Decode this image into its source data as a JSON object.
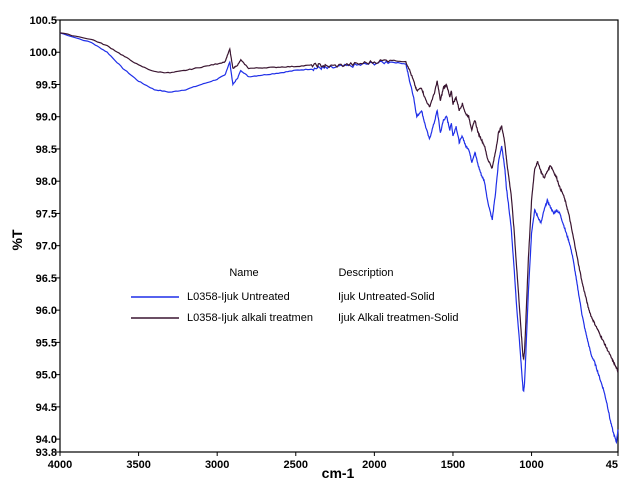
{
  "chart_data": {
    "type": "line",
    "xlabel": "cm-1",
    "ylabel": "%T",
    "xlim": [
      4000,
      450
    ],
    "ylim": [
      93.8,
      100.5
    ],
    "x_ticks": [
      "4000",
      "3500",
      "3000",
      "2500",
      "2000",
      "1500",
      "1000",
      "45"
    ],
    "y_ticks": [
      "100.5",
      "100.0",
      "99.5",
      "99.0",
      "98.5",
      "98.0",
      "97.5",
      "97.0",
      "96.5",
      "96.0",
      "95.5",
      "95.0",
      "94.5",
      "94.0",
      "93.8"
    ],
    "grid": false,
    "legend": {
      "placement": "center-left",
      "header_name": "Name",
      "header_description": "Description",
      "entries": [
        {
          "name": "L0358-Ijuk Untreated",
          "description": "Ijuk Untreated-Solid",
          "color": "#1f2fe8"
        },
        {
          "name": "L0358-Ijuk alkali treatmen",
          "description": "Ijuk Alkali treatmen-Solid",
          "color": "#3a1530"
        }
      ]
    },
    "series": [
      {
        "name": "L0358-Ijuk Untreated",
        "color": "#1f2fe8",
        "x": [
          4000,
          3800,
          3700,
          3600,
          3500,
          3400,
          3300,
          3200,
          3100,
          3000,
          2950,
          2920,
          2900,
          2870,
          2850,
          2800,
          2700,
          2600,
          2500,
          2400,
          2350,
          2300,
          2200,
          2100,
          2000,
          1900,
          1800,
          1780,
          1750,
          1730,
          1700,
          1680,
          1650,
          1620,
          1600,
          1580,
          1560,
          1540,
          1520,
          1510,
          1500,
          1480,
          1460,
          1440,
          1420,
          1400,
          1380,
          1360,
          1340,
          1320,
          1300,
          1280,
          1250,
          1230,
          1210,
          1190,
          1170,
          1160,
          1150,
          1130,
          1110,
          1090,
          1070,
          1055,
          1050,
          1045,
          1035,
          1020,
          1000,
          980,
          960,
          940,
          920,
          900,
          880,
          860,
          840,
          820,
          800,
          780,
          760,
          740,
          720,
          700,
          680,
          660,
          640,
          620,
          600,
          580,
          560,
          540,
          520,
          500,
          480,
          460,
          450
        ],
        "y": [
          100.3,
          100.15,
          100.0,
          99.75,
          99.55,
          99.42,
          99.38,
          99.42,
          99.5,
          99.58,
          99.65,
          99.85,
          99.5,
          99.6,
          99.72,
          99.62,
          99.65,
          99.68,
          99.72,
          99.74,
          99.76,
          99.75,
          99.78,
          99.8,
          99.83,
          99.85,
          99.82,
          99.6,
          99.3,
          99.0,
          99.1,
          98.9,
          98.65,
          98.9,
          99.1,
          98.75,
          98.95,
          99.0,
          98.8,
          98.9,
          98.7,
          98.85,
          98.6,
          98.7,
          98.55,
          98.5,
          98.3,
          98.45,
          98.25,
          98.1,
          98.0,
          97.7,
          97.4,
          97.8,
          98.3,
          98.55,
          98.2,
          97.9,
          97.7,
          97.3,
          96.6,
          95.9,
          95.3,
          94.8,
          94.75,
          94.85,
          95.4,
          96.3,
          97.2,
          97.55,
          97.45,
          97.35,
          97.55,
          97.7,
          97.6,
          97.5,
          97.55,
          97.5,
          97.35,
          97.2,
          97.05,
          96.85,
          96.55,
          96.25,
          95.95,
          95.7,
          95.5,
          95.3,
          95.2,
          95.05,
          94.9,
          94.75,
          94.55,
          94.3,
          94.1,
          93.95,
          94.15
        ]
      },
      {
        "name": "L0358-Ijuk alkali treatmen",
        "color": "#3a1530",
        "x": [
          4000,
          3800,
          3700,
          3600,
          3500,
          3400,
          3300,
          3200,
          3100,
          3000,
          2950,
          2920,
          2900,
          2870,
          2850,
          2800,
          2700,
          2600,
          2500,
          2400,
          2350,
          2300,
          2200,
          2100,
          2000,
          1900,
          1800,
          1780,
          1750,
          1730,
          1700,
          1680,
          1650,
          1620,
          1600,
          1580,
          1560,
          1540,
          1520,
          1510,
          1500,
          1480,
          1460,
          1440,
          1420,
          1400,
          1380,
          1360,
          1340,
          1320,
          1300,
          1280,
          1250,
          1230,
          1210,
          1190,
          1170,
          1160,
          1150,
          1130,
          1110,
          1090,
          1070,
          1055,
          1050,
          1045,
          1035,
          1020,
          1000,
          980,
          960,
          940,
          920,
          900,
          880,
          860,
          840,
          820,
          800,
          780,
          760,
          740,
          720,
          700,
          680,
          660,
          640,
          620,
          600,
          580,
          560,
          540,
          520,
          500,
          480,
          460,
          450
        ],
        "y": [
          100.3,
          100.2,
          100.1,
          99.95,
          99.8,
          99.7,
          99.68,
          99.72,
          99.77,
          99.82,
          99.85,
          100.05,
          99.75,
          99.8,
          99.88,
          99.75,
          99.76,
          99.77,
          99.78,
          99.8,
          99.8,
          99.78,
          99.8,
          99.82,
          99.85,
          99.88,
          99.85,
          99.75,
          99.55,
          99.4,
          99.45,
          99.3,
          99.15,
          99.35,
          99.55,
          99.25,
          99.45,
          99.5,
          99.3,
          99.4,
          99.2,
          99.3,
          99.1,
          99.2,
          99.05,
          99.0,
          98.8,
          98.95,
          98.75,
          98.65,
          98.55,
          98.35,
          98.2,
          98.45,
          98.75,
          98.85,
          98.6,
          98.35,
          98.15,
          97.8,
          97.2,
          96.5,
          95.8,
          95.3,
          95.25,
          95.35,
          95.9,
          96.8,
          97.7,
          98.2,
          98.3,
          98.15,
          98.05,
          98.15,
          98.25,
          98.15,
          98.05,
          97.9,
          97.8,
          97.65,
          97.45,
          97.2,
          96.95,
          96.7,
          96.45,
          96.25,
          96.05,
          95.9,
          95.8,
          95.7,
          95.6,
          95.5,
          95.4,
          95.3,
          95.2,
          95.1,
          95.05
        ]
      }
    ]
  }
}
